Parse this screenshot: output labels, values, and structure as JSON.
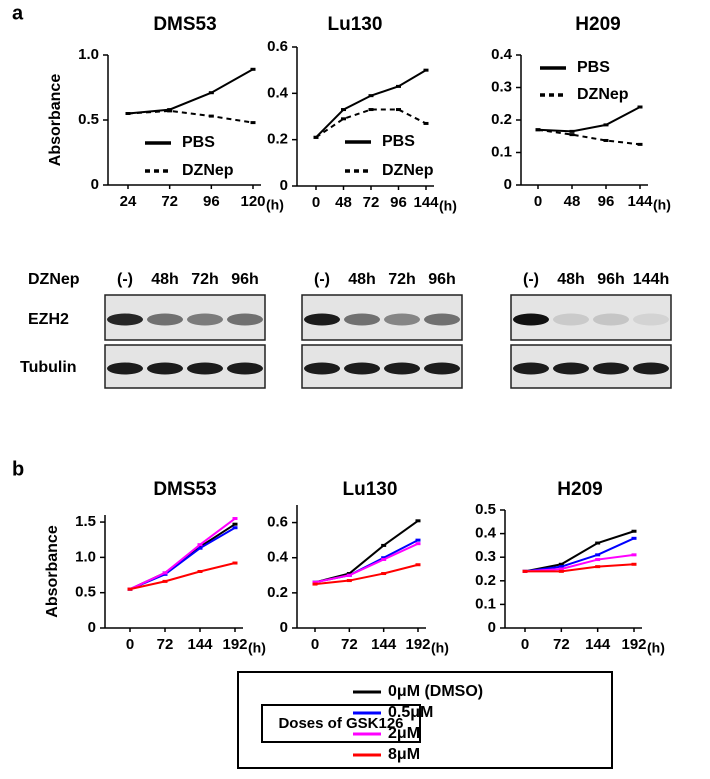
{
  "panel_labels": [
    "a",
    "b"
  ],
  "chart_data": [
    {
      "type": "line",
      "title": "DMS53",
      "ylabel": "Absorbance",
      "xlabel": "(h)",
      "legend": true,
      "categories": [
        "24",
        "72",
        "96",
        "120"
      ],
      "ylim": [
        0,
        1
      ],
      "yticks": [
        0,
        0.5,
        {
          "value": 1,
          "label": "1.0"
        }
      ],
      "series": [
        {
          "name": "PBS",
          "color": "#000000",
          "dash": false,
          "values": [
            0.55,
            0.58,
            0.71,
            0.89
          ]
        },
        {
          "name": "DZNep",
          "color": "#000000",
          "dash": true,
          "values": [
            0.55,
            0.57,
            0.53,
            0.48
          ]
        }
      ]
    },
    {
      "type": "line",
      "title": "Lu130",
      "xlabel": "(h)",
      "legend": true,
      "categories": [
        "0",
        "48",
        "72",
        "96",
        "144"
      ],
      "ylim": [
        0,
        0.6
      ],
      "yticks": [
        0,
        0.2,
        0.4,
        0.6
      ],
      "series": [
        {
          "name": "PBS",
          "color": "#000000",
          "dash": false,
          "values": [
            0.21,
            0.33,
            0.39,
            0.43,
            0.5
          ]
        },
        {
          "name": "DZNep",
          "color": "#000000",
          "dash": true,
          "values": [
            0.21,
            0.29,
            0.33,
            0.33,
            0.27
          ]
        }
      ]
    },
    {
      "type": "line",
      "title": "H209",
      "xlabel": "(h)",
      "legend": true,
      "categories": [
        "0",
        "48",
        "96",
        "144"
      ],
      "ylim": [
        0,
        0.4
      ],
      "yticks": [
        0,
        0.1,
        0.2,
        0.3,
        0.4
      ],
      "series": [
        {
          "name": "PBS",
          "color": "#000000",
          "dash": false,
          "values": [
            0.17,
            0.165,
            0.185,
            0.24
          ]
        },
        {
          "name": "DZNep",
          "color": "#000000",
          "dash": true,
          "values": [
            0.17,
            0.155,
            0.137,
            0.125
          ]
        }
      ]
    },
    {
      "type": "line",
      "title": "DMS53",
      "ylabel": "Absorbance",
      "xlabel": "(h)",
      "categories": [
        "0",
        "72",
        "144",
        "192"
      ],
      "ylim": [
        0,
        1.6
      ],
      "yticks": [
        0,
        0.5,
        {
          "value": 1,
          "label": "1.0"
        },
        1.5
      ],
      "series": [
        {
          "color": "#000000",
          "values": [
            0.55,
            0.78,
            1.15,
            1.47
          ]
        },
        {
          "color": "#0000ff",
          "values": [
            0.55,
            0.76,
            1.13,
            1.42
          ]
        },
        {
          "color": "#ff00ff",
          "values": [
            0.55,
            0.78,
            1.18,
            1.55
          ]
        },
        {
          "color": "#ff0000",
          "values": [
            0.55,
            0.66,
            0.8,
            0.92
          ]
        }
      ]
    },
    {
      "type": "line",
      "title": "Lu130",
      "xlabel": "(h)",
      "categories": [
        "0",
        "72",
        "144",
        "192"
      ],
      "ylim": [
        0,
        0.7
      ],
      "yticks": [
        0,
        0.2,
        0.4,
        0.6
      ],
      "series": [
        {
          "color": "#000000",
          "values": [
            0.26,
            0.31,
            0.47,
            0.61
          ]
        },
        {
          "color": "#0000ff",
          "values": [
            0.26,
            0.3,
            0.4,
            0.5
          ]
        },
        {
          "color": "#ff00ff",
          "values": [
            0.26,
            0.3,
            0.39,
            0.48
          ]
        },
        {
          "color": "#ff0000",
          "values": [
            0.25,
            0.27,
            0.31,
            0.36
          ]
        }
      ]
    },
    {
      "type": "line",
      "title": "H209",
      "xlabel": "(h)",
      "categories": [
        "0",
        "72",
        "144",
        "192"
      ],
      "ylim": [
        0,
        0.5
      ],
      "yticks": [
        0,
        0.1,
        0.2,
        0.3,
        0.4,
        0.5
      ],
      "series": [
        {
          "color": "#000000",
          "values": [
            0.24,
            0.27,
            0.36,
            0.41
          ]
        },
        {
          "color": "#0000ff",
          "values": [
            0.24,
            0.26,
            0.31,
            0.38
          ]
        },
        {
          "color": "#ff00ff",
          "values": [
            0.24,
            0.25,
            0.29,
            0.31
          ]
        },
        {
          "color": "#ff0000",
          "values": [
            0.24,
            0.24,
            0.26,
            0.27
          ]
        }
      ]
    }
  ],
  "legend_b": {
    "title": "Doses of GSK126",
    "entries": [
      "0μM (DMSO)",
      "0.5μM",
      "2μM",
      "8μM"
    ]
  },
  "blots": {
    "treatment": "DZNep",
    "proteins": [
      "EZH2",
      "Tubulin"
    ],
    "lanes": [
      [
        "(-)",
        "48h",
        "72h",
        "96h"
      ],
      [
        "(-)",
        "48h",
        "72h",
        "96h"
      ],
      [
        "(-)",
        "48h",
        "96h",
        "144h"
      ]
    ]
  }
}
